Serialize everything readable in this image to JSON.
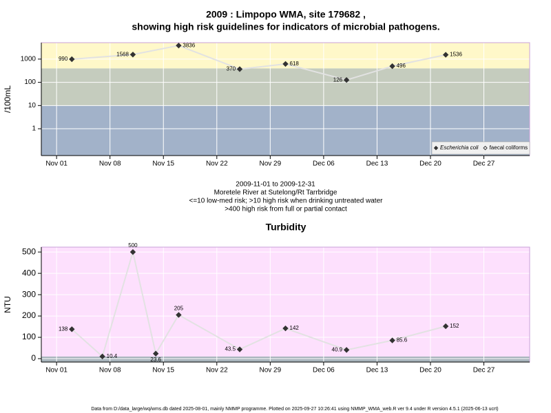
{
  "chart_data": [
    {
      "type": "line",
      "title": [
        "2009 : Limpopo WMA, site 179682 ,",
        "showing high risk guidelines for indicators of microbial pathogens."
      ],
      "y_label": "/100mL",
      "x": [
        "2009-11-03",
        "2009-11-11",
        "2009-11-17",
        "2009-11-25",
        "2009-12-01",
        "2009-12-09",
        "2009-12-15",
        "2009-12-22"
      ],
      "series": [
        {
          "name": "Escherichia coli",
          "color": "#333333",
          "marker": "filled",
          "values": [
            990,
            1568,
            3836,
            370,
            618,
            126,
            496,
            1536
          ]
        },
        {
          "name": "faecal coliforms",
          "color": "#333333",
          "marker": "open",
          "values": [
            null,
            null,
            null,
            null,
            null,
            null,
            null,
            null
          ]
        }
      ],
      "yscale": "log",
      "xlim": [
        "2009-10-30",
        "2010-01-02"
      ],
      "xticks": [
        {
          "value": "2009-11-01",
          "label": "Nov 01"
        },
        {
          "value": "2009-11-08",
          "label": "Nov 08"
        },
        {
          "value": "2009-11-15",
          "label": "Nov 15"
        },
        {
          "value": "2009-11-22",
          "label": "Nov 22"
        },
        {
          "value": "2009-11-29",
          "label": "Nov 29"
        },
        {
          "value": "2009-12-06",
          "label": "Dec 06"
        },
        {
          "value": "2009-12-13",
          "label": "Dec 13"
        },
        {
          "value": "2009-12-20",
          "label": "Dec 20"
        },
        {
          "value": "2009-12-27",
          "label": "Dec 27"
        }
      ],
      "ylim": [
        0.07,
        5100
      ],
      "yticks": [
        1,
        10,
        100,
        1000
      ],
      "thresholds": [
        10,
        400
      ],
      "band_colors": [
        "#a2b2c9",
        "#c5ccbe",
        "#fff8c9"
      ],
      "line_color": "#e2e2e2",
      "grid": true,
      "legend": "lower right"
    },
    {
      "type": "line",
      "title": [
        "Turbidity"
      ],
      "y_label": "NTU",
      "x": [
        "2009-11-03",
        "2009-11-07",
        "2009-11-11",
        "2009-11-14",
        "2009-11-17",
        "2009-11-25",
        "2009-12-01",
        "2009-12-09",
        "2009-12-15",
        "2009-12-22"
      ],
      "values": [
        138,
        10.4,
        500,
        23.6,
        205,
        43.5,
        142,
        40.9,
        85.6,
        152
      ],
      "color": "#333333",
      "yscale": "linear",
      "xlim": [
        "2009-10-30",
        "2010-01-02"
      ],
      "xticks": [
        {
          "value": "2009-11-01",
          "label": "Nov 01"
        },
        {
          "value": "2009-11-08",
          "label": "Nov 08"
        },
        {
          "value": "2009-11-15",
          "label": "Nov 15"
        },
        {
          "value": "2009-11-22",
          "label": "Nov 22"
        },
        {
          "value": "2009-11-29",
          "label": "Nov 29"
        },
        {
          "value": "2009-12-06",
          "label": "Dec 06"
        },
        {
          "value": "2009-12-13",
          "label": "Dec 13"
        },
        {
          "value": "2009-12-20",
          "label": "Dec 20"
        },
        {
          "value": "2009-12-27",
          "label": "Dec 27"
        }
      ],
      "ylim": [
        -16,
        523
      ],
      "yticks": [
        0,
        100,
        200,
        300,
        400,
        500
      ],
      "thresholds": [
        10
      ],
      "band_colors": [
        "#a9b5bd",
        "#fde0fd"
      ],
      "line_color": "#e2e2e2",
      "grid": true
    }
  ],
  "caption": [
    "2009-11-01 to 2009-12-31",
    "Moretele River at Sutelong/Rt Tarrbridge",
    "<=10 low-med risk; >10 high risk when drinking untreated water",
    ">400 high risk from full or partial contact"
  ],
  "footer": "Data from D:/data_large/wq/wms.db dated 2025-08-01, mainly NMMP programme. Plotted on 2025-09-27 10:26:41 using NMMP_WMA_web.R ver 9.4 under R version 4.5.1 (2025-06-13 ucrt)"
}
